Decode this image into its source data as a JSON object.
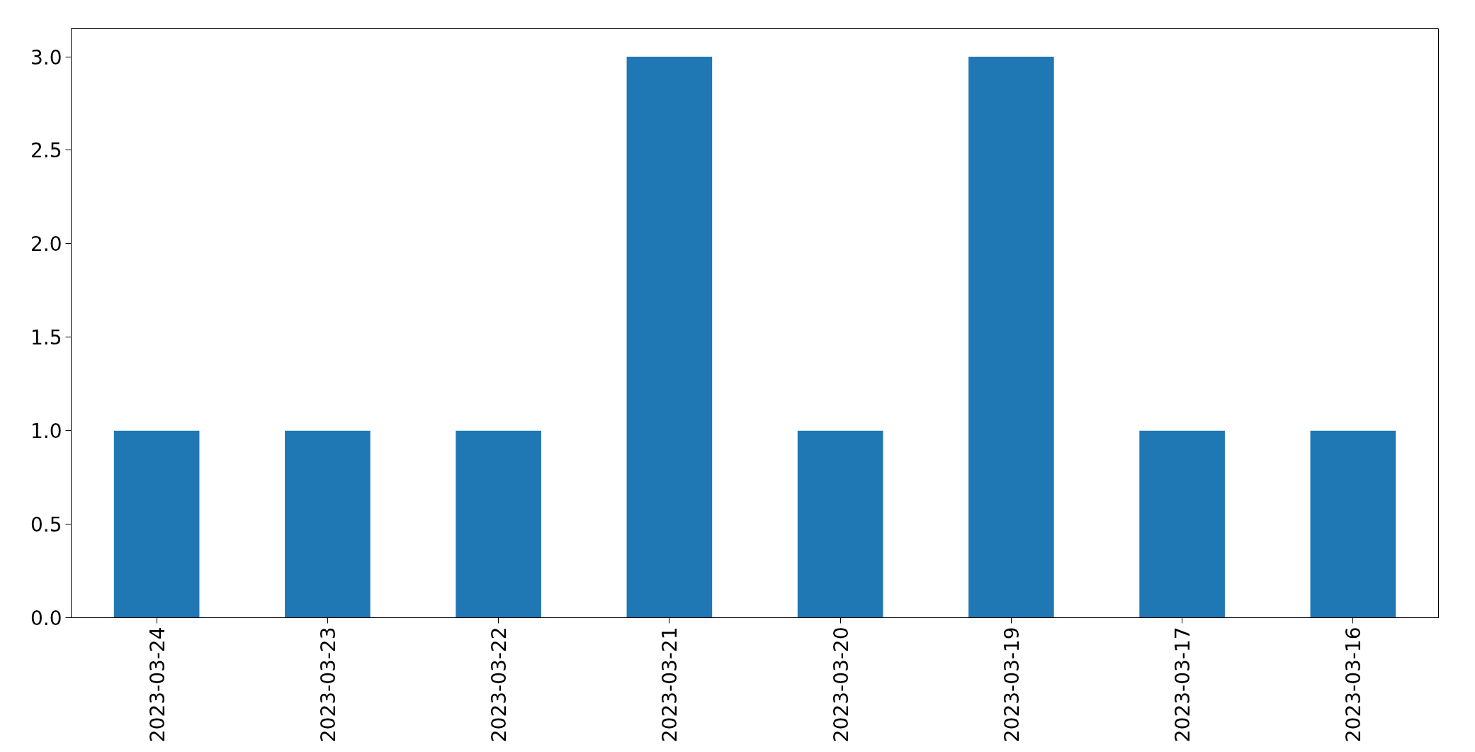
{
  "chart_data": {
    "type": "bar",
    "categories": [
      "2023-03-24",
      "2023-03-23",
      "2023-03-22",
      "2023-03-21",
      "2023-03-20",
      "2023-03-19",
      "2023-03-17",
      "2023-03-16"
    ],
    "values": [
      1,
      1,
      1,
      3,
      1,
      3,
      1,
      1
    ],
    "color": "#1f77b4",
    "ylim": [
      0,
      3.15
    ],
    "yticks": [
      {
        "value": 0,
        "label": "0.0"
      },
      {
        "value": 0.5,
        "label": "0.5"
      },
      {
        "value": 1,
        "label": "1.0"
      },
      {
        "value": 1.5,
        "label": "1.5"
      },
      {
        "value": 2,
        "label": "2.0"
      },
      {
        "value": 2.5,
        "label": "2.5"
      },
      {
        "value": 3,
        "label": "3.0"
      }
    ],
    "grid": false
  }
}
